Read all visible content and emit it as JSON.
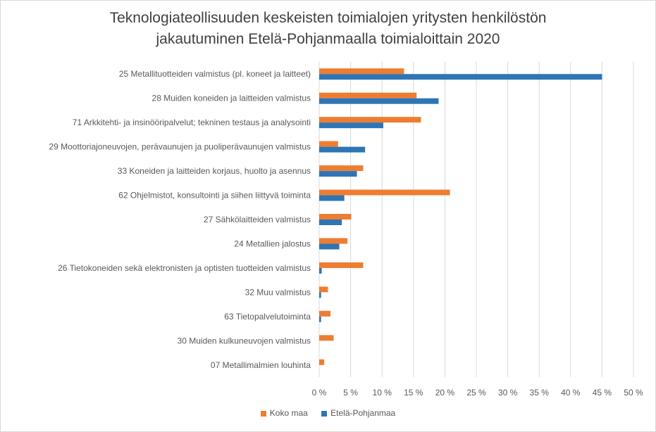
{
  "chart_data": {
    "type": "bar",
    "orientation": "horizontal",
    "title_line1": "Teknologiateollisuuden keskeisten toimialojen yritysten henkilöstön",
    "title_line2": "jakautuminen Etelä-Pohjanmaalla toimialoittain 2020",
    "categories": [
      "25 Metallituotteiden valmistus (pl. koneet ja laitteet)",
      "28 Muiden koneiden ja laitteiden valmistus",
      "71 Arkkitehti- ja insinööripalvelut; tekninen testaus ja analysointi",
      "29 Moottoriajoneuvojen, perävaunujen ja puoliperävaunujen valmistus",
      "33 Koneiden ja laitteiden korjaus, huolto ja asennus",
      "62 Ohjelmistot, konsultointi ja siihen liittyvä toiminta",
      "27 Sähkölaitteiden valmistus",
      "24 Metallien jalostus",
      "26 Tietokoneiden sekä elektronisten ja optisten tuotteiden valmistus",
      "32 Muu valmistus",
      "63 Tietopalvelutoiminta",
      "30 Muiden kulkuneuvojen valmistus",
      "07 Metallimalmien louhinta"
    ],
    "series": [
      {
        "name": "Koko maa",
        "color": "#ED7D31",
        "values": [
          13.5,
          15.5,
          16.2,
          3.0,
          7.0,
          20.8,
          5.1,
          4.5,
          7.0,
          1.4,
          1.8,
          2.3,
          0.8
        ]
      },
      {
        "name": "Etelä-Pohjanmaa",
        "color": "#2E75B6",
        "values": [
          45.0,
          19.0,
          10.2,
          7.3,
          6.0,
          4.0,
          3.6,
          3.2,
          0.4,
          0.3,
          0.3,
          0.0,
          0.0
        ]
      }
    ],
    "xlim": [
      0,
      50
    ],
    "xticks": [
      "0 %",
      "5 %",
      "10 %",
      "15 %",
      "20 %",
      "25 %",
      "30 %",
      "35 %",
      "40 %",
      "45 %",
      "50 %"
    ],
    "xlabel": "",
    "ylabel": "",
    "grid": true,
    "legend_position": "bottom"
  }
}
